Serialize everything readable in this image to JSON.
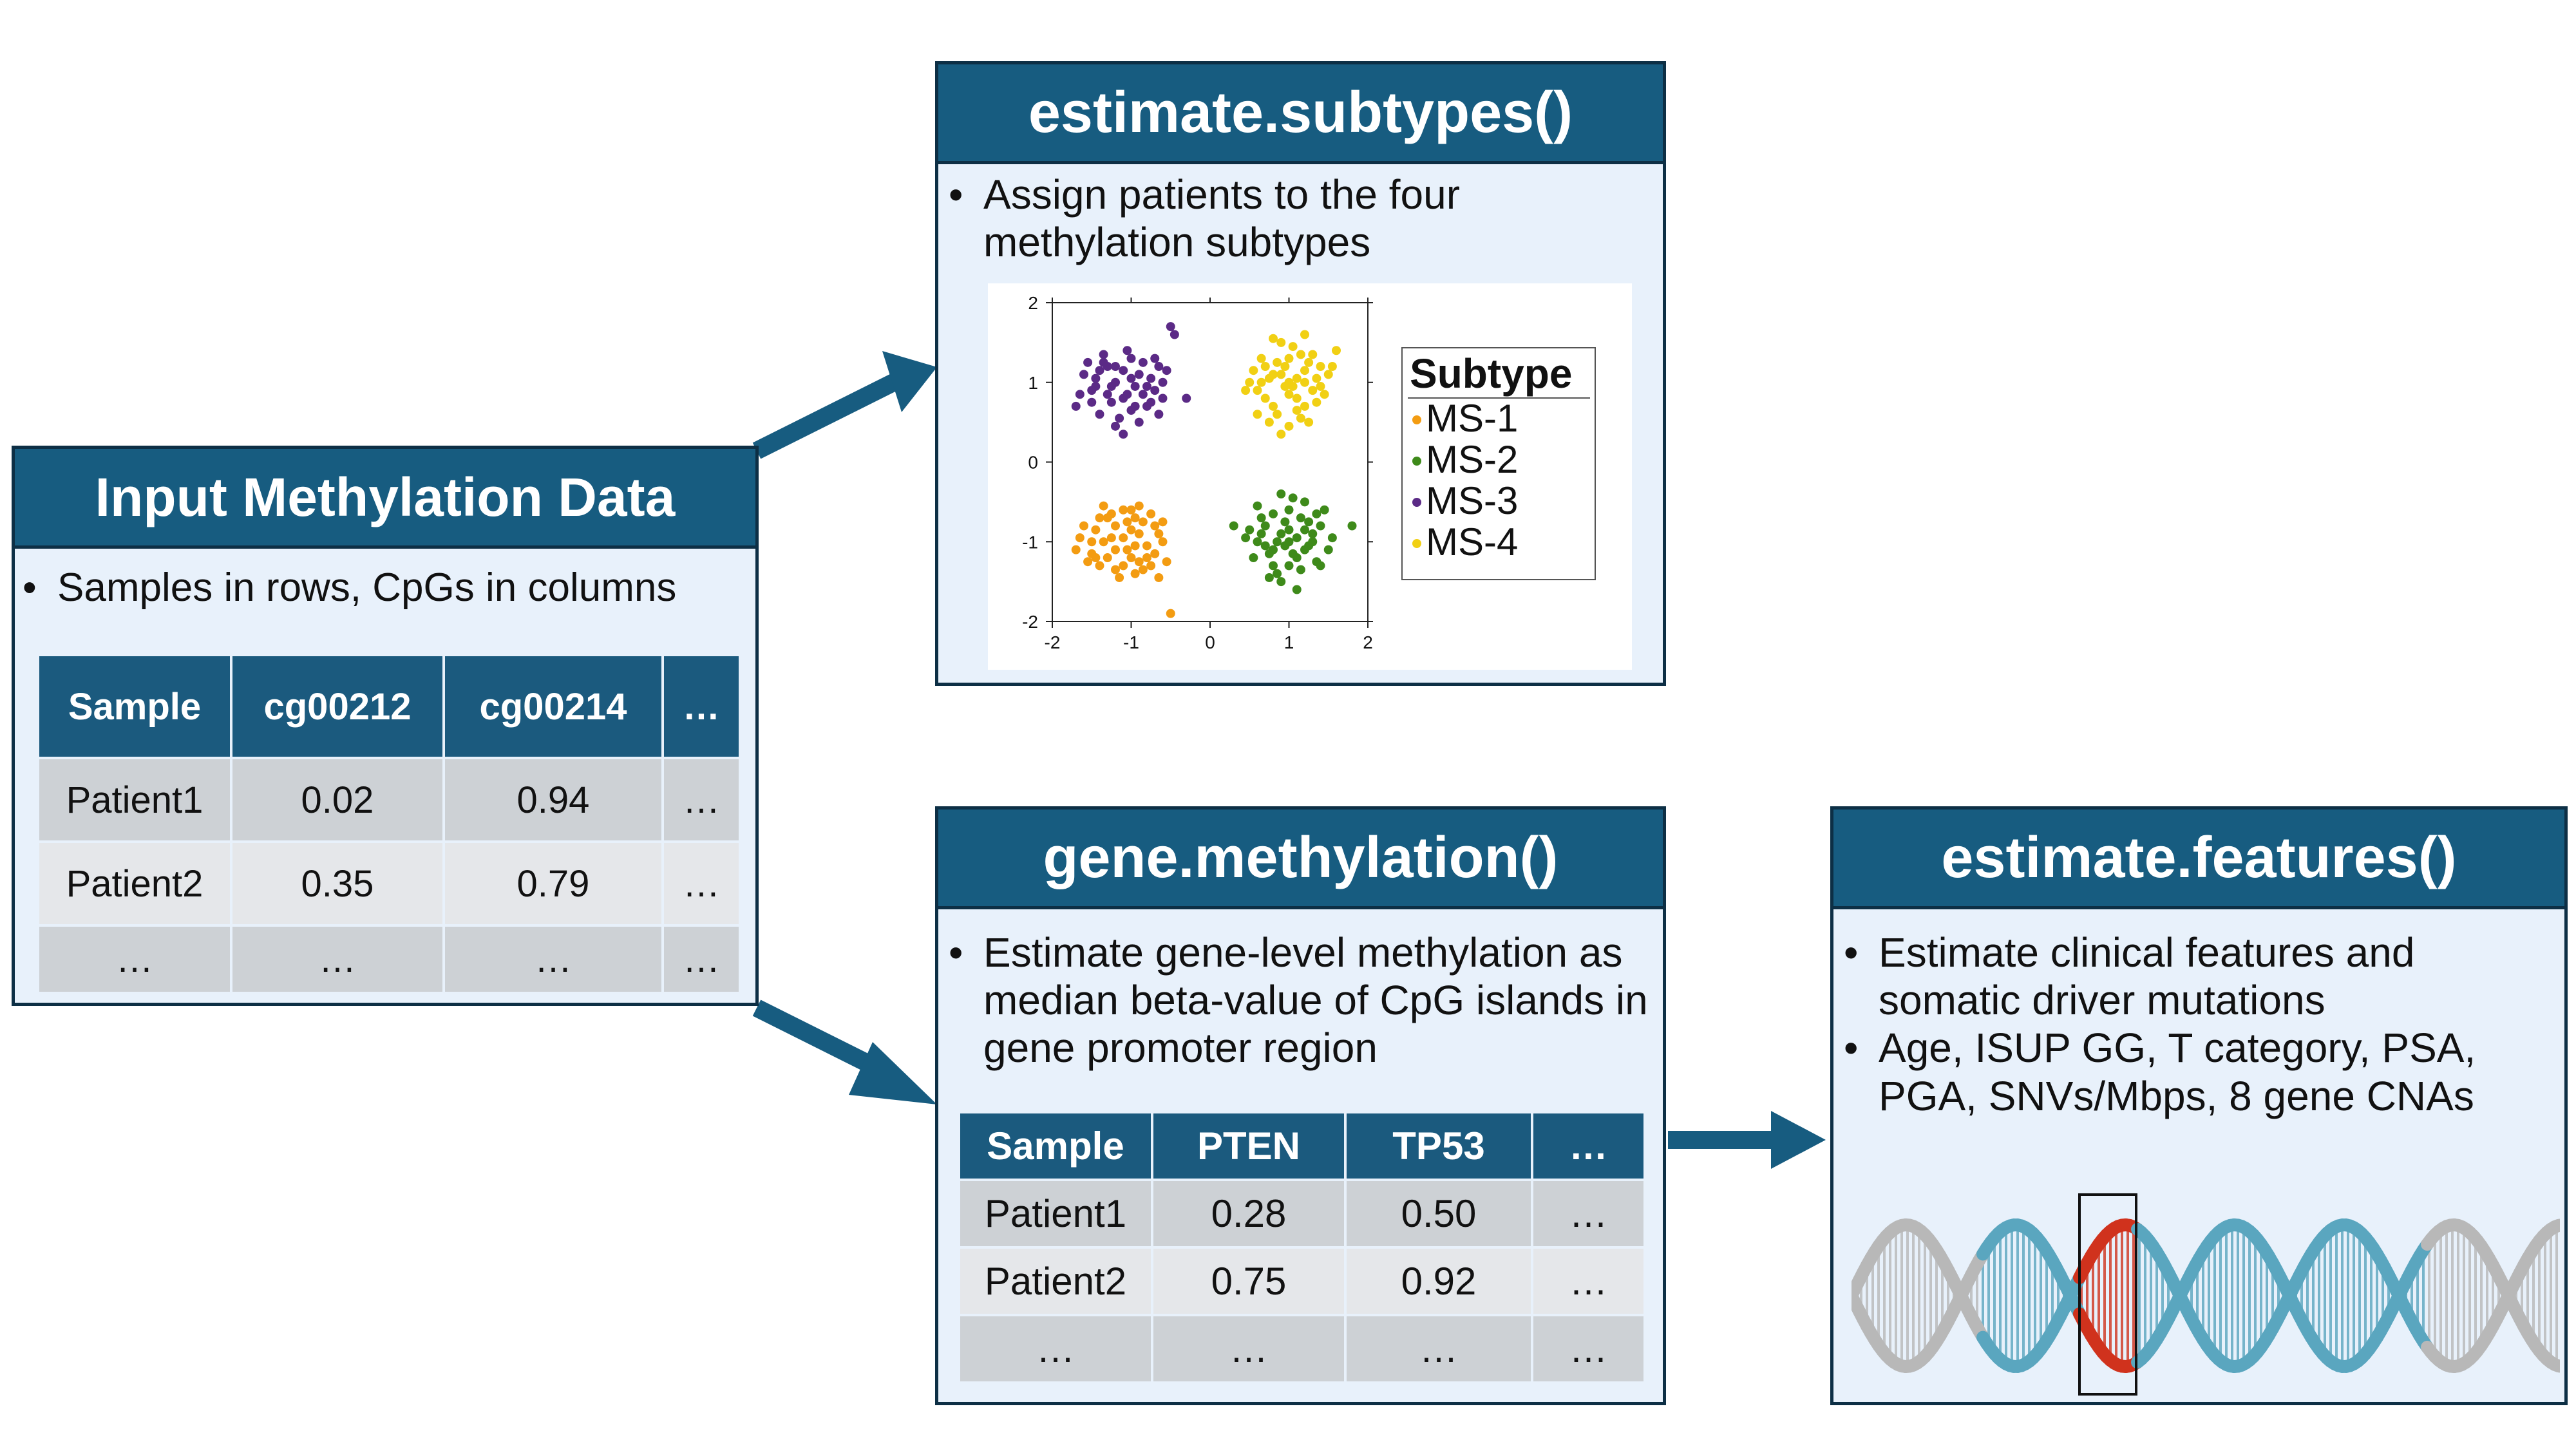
{
  "input_panel": {
    "title": "Input Methylation Data",
    "bullets": [
      "Samples in rows, CpGs in columns"
    ],
    "table": {
      "headers": [
        "Sample",
        "cg00212",
        "cg00214",
        "…"
      ],
      "rows": [
        [
          "Patient1",
          "0.02",
          "0.94",
          "…"
        ],
        [
          "Patient2",
          "0.35",
          "0.79",
          "…"
        ],
        [
          "…",
          "…",
          "…",
          "…"
        ]
      ]
    }
  },
  "subtypes_panel": {
    "title": "estimate.subtypes()",
    "bullets": [
      "Assign patients to the four methylation subtypes"
    ]
  },
  "gene_panel": {
    "title": "gene.methylation()",
    "bullets": [
      "Estimate gene-level methylation as median beta-value of CpG islands in gene promoter region"
    ],
    "table": {
      "headers": [
        "Sample",
        "PTEN",
        "TP53",
        "…"
      ],
      "rows": [
        [
          "Patient1",
          "0.28",
          "0.50",
          "…"
        ],
        [
          "Patient2",
          "0.75",
          "0.92",
          "…"
        ],
        [
          "…",
          "…",
          "…",
          "…"
        ]
      ]
    }
  },
  "features_panel": {
    "title": "estimate.features()",
    "bullets": [
      "Estimate clinical features and somatic driver mutations",
      "Age, ISUP GG, T category, PSA, PGA, SNVs/Mbps, 8 gene CNAs"
    ]
  },
  "chart_data": {
    "type": "scatter",
    "xlim": [
      -2,
      2
    ],
    "ylim": [
      -2,
      2
    ],
    "xticks": [
      "-2",
      "-1",
      "0",
      "1",
      "2"
    ],
    "yticks": [
      "2",
      "1",
      "0",
      "-1",
      "-2"
    ],
    "grid": false,
    "legend_title": "Subtype",
    "legend_position": "right",
    "series": [
      {
        "name": "MS-1",
        "color": "#f39c12",
        "center": [
          -1.0,
          -1.0
        ],
        "points": [
          [
            -1.3,
            -0.7
          ],
          [
            -1.1,
            -1.3
          ],
          [
            -0.9,
            -0.9
          ],
          [
            -1.5,
            -1.0
          ],
          [
            -0.8,
            -1.2
          ],
          [
            -1.0,
            -0.6
          ],
          [
            -1.2,
            -1.1
          ],
          [
            -0.7,
            -0.8
          ],
          [
            -1.4,
            -1.3
          ],
          [
            -0.95,
            -1.05
          ],
          [
            -1.6,
            -0.8
          ],
          [
            -0.6,
            -1.0
          ],
          [
            -1.05,
            -0.75
          ],
          [
            -1.25,
            -0.95
          ],
          [
            -0.85,
            -1.35
          ],
          [
            -1.7,
            -1.1
          ],
          [
            -1.35,
            -0.55
          ],
          [
            -0.75,
            -0.65
          ],
          [
            -1.15,
            -1.45
          ],
          [
            -0.55,
            -1.25
          ],
          [
            -1.45,
            -0.85
          ],
          [
            -1.0,
            -1.2
          ],
          [
            -0.9,
            -0.55
          ],
          [
            -1.55,
            -1.25
          ],
          [
            -0.65,
            -0.9
          ],
          [
            -1.2,
            -0.8
          ],
          [
            -0.8,
            -1.05
          ],
          [
            -1.3,
            -1.2
          ],
          [
            -1.1,
            -0.95
          ],
          [
            -0.95,
            -1.4
          ],
          [
            -1.65,
            -0.95
          ],
          [
            -0.7,
            -1.15
          ],
          [
            -1.4,
            -0.7
          ],
          [
            -1.0,
            -0.85
          ],
          [
            -1.2,
            -1.35
          ],
          [
            -0.85,
            -0.75
          ],
          [
            -1.5,
            -1.15
          ],
          [
            -0.6,
            -0.75
          ],
          [
            -1.1,
            -0.6
          ],
          [
            -0.9,
            -1.25
          ],
          [
            -1.25,
            -0.65
          ],
          [
            -0.75,
            -1.3
          ],
          [
            -0.5,
            -1.9
          ],
          [
            -1.35,
            -1.0
          ],
          [
            -1.05,
            -1.1
          ],
          [
            -0.65,
            -1.45
          ],
          [
            -1.45,
            -1.2
          ],
          [
            -0.95,
            -0.7
          ]
        ]
      },
      {
        "name": "MS-2",
        "color": "#3e8a1a",
        "center": [
          1.0,
          -1.0
        ],
        "points": [
          [
            0.7,
            -0.8
          ],
          [
            1.1,
            -1.2
          ],
          [
            0.9,
            -0.9
          ],
          [
            1.3,
            -1.0
          ],
          [
            0.8,
            -1.3
          ],
          [
            1.0,
            -0.6
          ],
          [
            1.2,
            -1.1
          ],
          [
            0.6,
            -1.0
          ],
          [
            1.4,
            -0.8
          ],
          [
            0.95,
            -1.05
          ],
          [
            0.5,
            -0.85
          ],
          [
            1.5,
            -1.1
          ],
          [
            1.05,
            -0.45
          ],
          [
            0.85,
            -1.4
          ],
          [
            1.25,
            -0.75
          ],
          [
            0.75,
            -1.15
          ],
          [
            1.15,
            -1.35
          ],
          [
            0.65,
            -0.7
          ],
          [
            1.35,
            -1.25
          ],
          [
            1.0,
            -0.85
          ],
          [
            0.9,
            -1.5
          ],
          [
            1.1,
            -0.95
          ],
          [
            0.3,
            -0.8
          ],
          [
            1.8,
            -0.8
          ],
          [
            0.55,
            -1.2
          ],
          [
            1.45,
            -0.6
          ],
          [
            0.8,
            -0.65
          ],
          [
            1.2,
            -0.5
          ],
          [
            1.0,
            -1.3
          ],
          [
            0.7,
            -1.05
          ],
          [
            1.3,
            -0.9
          ],
          [
            0.95,
            -0.75
          ],
          [
            1.05,
            -1.15
          ],
          [
            0.85,
            -1.0
          ],
          [
            1.15,
            -0.7
          ],
          [
            0.6,
            -0.55
          ],
          [
            1.4,
            -1.3
          ],
          [
            0.75,
            -1.45
          ],
          [
            1.25,
            -1.05
          ],
          [
            0.9,
            -0.4
          ],
          [
            1.1,
            -1.6
          ],
          [
            0.65,
            -0.9
          ],
          [
            1.35,
            -0.65
          ],
          [
            0.45,
            -0.95
          ],
          [
            1.55,
            -0.95
          ],
          [
            0.8,
            -1.1
          ],
          [
            1.0,
            -1.0
          ],
          [
            1.2,
            -0.85
          ]
        ]
      },
      {
        "name": "MS-3",
        "color": "#5b2a86",
        "center": [
          -1.0,
          1.0
        ],
        "points": [
          [
            -1.3,
            1.2
          ],
          [
            -1.1,
            0.8
          ],
          [
            -0.9,
            1.1
          ],
          [
            -1.5,
            0.9
          ],
          [
            -0.8,
            0.7
          ],
          [
            -1.0,
            1.3
          ],
          [
            -1.2,
            1.0
          ],
          [
            -0.7,
            0.9
          ],
          [
            -1.4,
            0.6
          ],
          [
            -0.95,
            0.95
          ],
          [
            -1.6,
            1.1
          ],
          [
            -0.6,
            0.8
          ],
          [
            -1.05,
            1.4
          ],
          [
            -1.25,
            0.75
          ],
          [
            -0.85,
            1.25
          ],
          [
            -1.7,
            0.7
          ],
          [
            -1.35,
            1.35
          ],
          [
            -0.75,
            1.05
          ],
          [
            -1.15,
            0.55
          ],
          [
            -0.55,
            1.15
          ],
          [
            -1.45,
            1.05
          ],
          [
            -1.0,
            0.65
          ],
          [
            -0.45,
            1.6
          ],
          [
            -0.5,
            1.7
          ],
          [
            -1.55,
            1.25
          ],
          [
            -0.65,
            0.6
          ],
          [
            -1.2,
            1.2
          ],
          [
            -0.8,
            0.95
          ],
          [
            -1.3,
            0.85
          ],
          [
            -1.1,
            1.15
          ],
          [
            -0.95,
            0.7
          ],
          [
            -1.65,
            0.85
          ],
          [
            -0.7,
            1.3
          ],
          [
            -1.4,
            1.15
          ],
          [
            -1.0,
            1.05
          ],
          [
            -1.2,
            0.45
          ],
          [
            -0.85,
            0.85
          ],
          [
            -1.5,
            0.75
          ],
          [
            -0.6,
            1.0
          ],
          [
            -1.1,
            0.35
          ],
          [
            -0.9,
            0.5
          ],
          [
            -1.25,
            0.95
          ],
          [
            -0.75,
            0.75
          ],
          [
            -1.35,
            1.25
          ],
          [
            -1.05,
            0.85
          ],
          [
            -0.65,
            1.2
          ],
          [
            -1.45,
            0.95
          ],
          [
            -0.3,
            0.8
          ]
        ]
      },
      {
        "name": "MS-4",
        "color": "#f1d014",
        "center": [
          1.0,
          1.0
        ],
        "points": [
          [
            0.7,
            1.2
          ],
          [
            1.1,
            0.8
          ],
          [
            0.9,
            1.1
          ],
          [
            1.3,
            0.9
          ],
          [
            0.8,
            0.7
          ],
          [
            1.0,
            1.3
          ],
          [
            1.2,
            1.0
          ],
          [
            0.6,
            0.9
          ],
          [
            1.4,
            1.2
          ],
          [
            0.95,
            0.95
          ],
          [
            0.5,
            1.0
          ],
          [
            1.5,
            1.1
          ],
          [
            1.05,
            1.45
          ],
          [
            0.85,
            0.6
          ],
          [
            1.25,
            1.25
          ],
          [
            0.75,
            1.05
          ],
          [
            1.15,
            0.55
          ],
          [
            0.65,
            1.3
          ],
          [
            1.35,
            0.75
          ],
          [
            1.0,
            0.85
          ],
          [
            0.9,
            1.5
          ],
          [
            1.1,
            1.05
          ],
          [
            0.8,
            1.55
          ],
          [
            1.2,
            1.6
          ],
          [
            1.6,
            1.4
          ],
          [
            1.45,
            0.85
          ],
          [
            0.55,
            1.15
          ],
          [
            1.3,
            1.35
          ],
          [
            1.0,
            0.45
          ],
          [
            0.7,
            0.8
          ],
          [
            1.2,
            0.7
          ],
          [
            0.95,
            1.2
          ],
          [
            1.05,
            0.95
          ],
          [
            0.85,
            1.25
          ],
          [
            1.15,
            1.35
          ],
          [
            0.6,
            0.6
          ],
          [
            1.4,
            0.95
          ],
          [
            0.75,
            0.5
          ],
          [
            1.25,
            0.5
          ],
          [
            0.9,
            0.35
          ],
          [
            1.1,
            0.65
          ],
          [
            0.65,
            1.0
          ],
          [
            1.35,
            1.05
          ],
          [
            0.45,
            0.9
          ],
          [
            1.55,
            1.2
          ],
          [
            0.8,
            1.1
          ],
          [
            1.0,
            1.0
          ],
          [
            1.2,
            1.15
          ]
        ]
      }
    ]
  }
}
